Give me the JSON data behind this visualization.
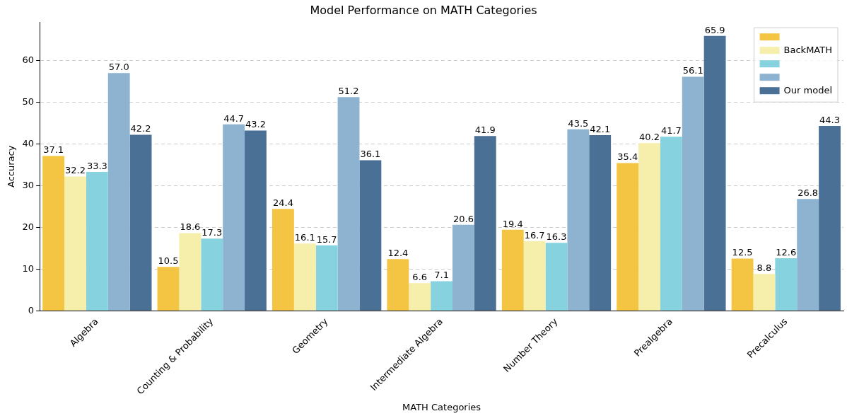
{
  "chart_data": {
    "type": "bar",
    "title": "Model Performance on MATH Categories",
    "xlabel": "MATH Categories",
    "ylabel": "Accuracy",
    "categories": [
      "Algebra",
      "Counting & Probability",
      "Geometry",
      "Intermediate Algebra",
      "Number Theory",
      "Prealgebra",
      "Precalculus"
    ],
    "series": [
      {
        "color": "#f4c542",
        "values": [
          37.1,
          10.5,
          24.4,
          12.4,
          19.4,
          35.4,
          12.5
        ],
        "value_labels": [
          "37.1",
          "10.5",
          "24.4",
          "12.4",
          "19.4",
          "35.4",
          "12.5"
        ]
      },
      {
        "name": "BackMATH",
        "color": "#f6eeab",
        "values": [
          32.2,
          18.6,
          16.1,
          6.6,
          16.7,
          40.2,
          8.8
        ],
        "value_labels": [
          "32.2",
          "18.6",
          "16.1",
          "6.6",
          "16.7",
          "40.2",
          "8.8"
        ]
      },
      {
        "color": "#86d3df",
        "values": [
          33.3,
          17.3,
          15.7,
          7.1,
          16.3,
          41.7,
          12.6
        ],
        "value_labels": [
          "33.3",
          "17.3",
          "15.7",
          "7.1",
          "16.3",
          "41.7",
          "12.6"
        ]
      },
      {
        "color": "#8db3d0",
        "values": [
          57.0,
          44.7,
          51.2,
          20.6,
          43.5,
          56.1,
          26.8
        ],
        "value_labels": [
          "57.0",
          "44.7",
          "51.2",
          "20.6",
          "43.5",
          "56.1",
          "26.8"
        ]
      },
      {
        "name": "Our model",
        "color": "#4a7096",
        "values": [
          42.2,
          43.2,
          36.1,
          41.9,
          42.1,
          65.9,
          44.3
        ],
        "value_labels": [
          "42.2",
          "43.2",
          "36.1",
          "41.9",
          "42.1",
          "65.9",
          "44.3"
        ]
      }
    ],
    "ylim": [
      0,
      69.2
    ],
    "yticks": [
      0,
      10,
      20,
      30,
      40,
      50,
      60
    ],
    "grid": "y",
    "legend": "top right"
  }
}
